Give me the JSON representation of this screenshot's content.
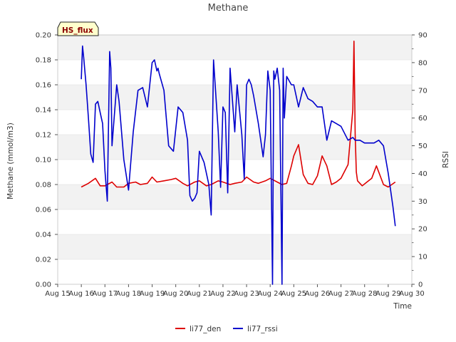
{
  "chart_data": {
    "type": "line",
    "title": "Methane",
    "xlabel": "Time",
    "ylabel": "Methane (mmol/m3)",
    "y2label": "RSSI",
    "badge": "HS_flux",
    "xlim": [
      15,
      30
    ],
    "ylim": [
      0,
      0.2
    ],
    "y2lim": [
      0,
      90
    ],
    "grid": "horizontal bands",
    "legend_position": "bottom-center",
    "xticks": [
      {
        "value": 15,
        "label": "Aug 15"
      },
      {
        "value": 16,
        "label": "Aug 16"
      },
      {
        "value": 17,
        "label": "Aug 17"
      },
      {
        "value": 18,
        "label": "Aug 18"
      },
      {
        "value": 19,
        "label": "Aug 19"
      },
      {
        "value": 20,
        "label": "Aug 20"
      },
      {
        "value": 21,
        "label": "Aug 21"
      },
      {
        "value": 22,
        "label": "Aug 22"
      },
      {
        "value": 23,
        "label": "Aug 23"
      },
      {
        "value": 24,
        "label": "Aug 24"
      },
      {
        "value": 25,
        "label": "Aug 25"
      },
      {
        "value": 26,
        "label": "Aug 26"
      },
      {
        "value": 27,
        "label": "Aug 27"
      },
      {
        "value": 28,
        "label": "Aug 28"
      },
      {
        "value": 29,
        "label": "Aug 29"
      },
      {
        "value": 30,
        "label": "Aug 30"
      }
    ],
    "yticks": [
      {
        "value": 0.0,
        "label": "0.00"
      },
      {
        "value": 0.02,
        "label": "0.02"
      },
      {
        "value": 0.04,
        "label": "0.04"
      },
      {
        "value": 0.06,
        "label": "0.06"
      },
      {
        "value": 0.08,
        "label": "0.08"
      },
      {
        "value": 0.1,
        "label": "0.10"
      },
      {
        "value": 0.12,
        "label": "0.12"
      },
      {
        "value": 0.14,
        "label": "0.14"
      },
      {
        "value": 0.16,
        "label": "0.16"
      },
      {
        "value": 0.18,
        "label": "0.18"
      },
      {
        "value": 0.2,
        "label": "0.20"
      }
    ],
    "y2ticks": [
      {
        "value": 0,
        "label": "0"
      },
      {
        "value": 10,
        "label": "10"
      },
      {
        "value": 20,
        "label": "20"
      },
      {
        "value": 30,
        "label": "30"
      },
      {
        "value": 40,
        "label": "40"
      },
      {
        "value": 50,
        "label": "50"
      },
      {
        "value": 60,
        "label": "60"
      },
      {
        "value": 70,
        "label": "70"
      },
      {
        "value": 80,
        "label": "80"
      },
      {
        "value": 90,
        "label": "90"
      }
    ],
    "series": [
      {
        "name": "li77_den",
        "axis": "left",
        "color": "#dd0000",
        "x": [
          16.0,
          16.3,
          16.6,
          16.8,
          17.0,
          17.3,
          17.5,
          17.8,
          18.0,
          18.3,
          18.5,
          18.8,
          19.0,
          19.2,
          19.5,
          19.8,
          20.0,
          20.3,
          20.5,
          20.8,
          21.0,
          21.3,
          21.5,
          21.8,
          22.0,
          22.3,
          22.5,
          22.8,
          23.0,
          23.3,
          23.5,
          23.8,
          24.0,
          24.3,
          24.5,
          24.7,
          24.9,
          25.0,
          25.2,
          25.4,
          25.6,
          25.8,
          26.0,
          26.2,
          26.4,
          26.6,
          26.8,
          27.0,
          27.3,
          27.5,
          27.55,
          27.6,
          27.65,
          27.7,
          27.9,
          28.1,
          28.3,
          28.5,
          28.8,
          29.0,
          29.3
        ],
        "y": [
          0.078,
          0.081,
          0.085,
          0.079,
          0.079,
          0.082,
          0.078,
          0.078,
          0.081,
          0.082,
          0.08,
          0.081,
          0.086,
          0.082,
          0.083,
          0.084,
          0.085,
          0.081,
          0.079,
          0.082,
          0.083,
          0.079,
          0.08,
          0.083,
          0.082,
          0.08,
          0.081,
          0.082,
          0.086,
          0.082,
          0.081,
          0.083,
          0.085,
          0.082,
          0.08,
          0.081,
          0.095,
          0.103,
          0.112,
          0.088,
          0.081,
          0.08,
          0.087,
          0.103,
          0.095,
          0.08,
          0.082,
          0.085,
          0.096,
          0.14,
          0.195,
          0.12,
          0.09,
          0.083,
          0.079,
          0.082,
          0.085,
          0.095,
          0.08,
          0.078,
          0.082
        ]
      },
      {
        "name": "li77_rssi",
        "axis": "right",
        "color": "#0000cc",
        "x": [
          16.0,
          16.05,
          16.1,
          16.2,
          16.3,
          16.4,
          16.5,
          16.6,
          16.7,
          16.8,
          16.9,
          17.0,
          17.1,
          17.2,
          17.25,
          17.3,
          17.5,
          17.6,
          17.8,
          18.0,
          18.2,
          18.4,
          18.6,
          18.8,
          19.0,
          19.1,
          19.2,
          19.25,
          19.3,
          19.5,
          19.7,
          19.9,
          20.1,
          20.3,
          20.5,
          20.6,
          20.7,
          20.8,
          20.9,
          21.0,
          21.2,
          21.4,
          21.5,
          21.6,
          21.8,
          21.9,
          22.0,
          22.1,
          22.2,
          22.3,
          22.5,
          22.6,
          22.8,
          22.9,
          23.0,
          23.1,
          23.2,
          23.3,
          23.5,
          23.7,
          23.8,
          23.9,
          24.0,
          24.1,
          24.15,
          24.2,
          24.3,
          24.4,
          24.5,
          24.55,
          24.6,
          24.7,
          24.9,
          25.0,
          25.2,
          25.4,
          25.6,
          25.8,
          26.0,
          26.2,
          26.4,
          26.6,
          26.8,
          27.0,
          27.3,
          27.5,
          27.6,
          27.8,
          28.0,
          28.2,
          28.4,
          28.6,
          28.8,
          29.0,
          29.2,
          29.3
        ],
        "y": [
          74,
          86,
          82,
          72,
          60,
          47,
          44,
          65,
          66,
          62,
          58,
          41,
          30,
          84,
          78,
          50,
          72,
          66,
          45,
          34,
          55,
          70,
          71,
          64,
          80,
          81,
          77,
          78,
          76,
          70,
          50,
          48,
          64,
          62,
          52,
          32,
          30,
          31,
          33,
          48,
          44,
          36,
          25,
          81,
          55,
          35,
          64,
          62,
          33,
          78,
          55,
          72,
          54,
          38,
          72,
          74,
          72,
          68,
          58,
          46,
          54,
          77,
          70,
          0,
          77,
          74,
          78,
          70,
          0,
          78,
          60,
          75,
          72,
          72,
          64,
          71,
          67,
          66,
          64,
          64,
          52,
          59,
          58,
          57,
          52,
          53,
          52,
          52,
          51,
          51,
          51,
          52,
          50,
          40,
          28,
          21
        ]
      }
    ]
  }
}
